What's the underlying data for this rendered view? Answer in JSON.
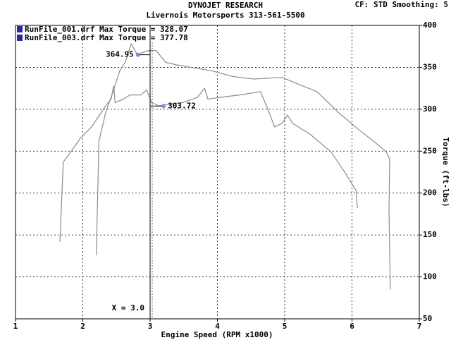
{
  "chart_data": {
    "type": "line",
    "title": "DYNOJET RESEARCH",
    "subtitle": "Livernois Motorsports 313-561-5500",
    "settings_text": "CF: STD  Smoothing: 5",
    "x_label": "Engine Speed (RPM x1000)",
    "y_label": "Torque (ft-lbs)",
    "xlim": [
      1,
      7
    ],
    "xticks": [
      1,
      2,
      3,
      4,
      5,
      6,
      7
    ],
    "ylim": [
      50,
      400
    ],
    "yticks": [
      50,
      100,
      150,
      200,
      250,
      300,
      350,
      400
    ],
    "grid": true,
    "series": [
      {
        "name": "RunFile_001.drf Max Torque = 328.07",
        "color": "#8c8c8c",
        "legend_color": "#2a2a9a",
        "x": [
          1.66,
          1.71,
          1.82,
          1.97,
          2.13,
          2.34,
          2.42,
          2.46,
          2.48,
          2.6,
          2.7,
          2.86,
          2.95,
          3.02,
          3.13,
          3.28,
          3.49,
          3.7,
          3.81,
          3.86,
          4.02,
          4.33,
          4.64,
          4.75,
          4.85,
          4.96,
          5.04,
          5.12,
          5.38,
          5.69,
          5.9,
          6.06,
          6.08
        ],
        "values": [
          142,
          237,
          249,
          266,
          279,
          304,
          312,
          328,
          308,
          312,
          317,
          317,
          323,
          308,
          304,
          306,
          308,
          314,
          325,
          312,
          314,
          317,
          321,
          300,
          279,
          283,
          293,
          283,
          270,
          249,
          224,
          203,
          182
        ]
      },
      {
        "name": "RunFile_003.drf Max Torque = 377.78",
        "color": "#8c8c8c",
        "legend_color": "#2a2a9a",
        "x": [
          2.2,
          2.24,
          2.34,
          2.45,
          2.55,
          2.63,
          2.72,
          2.81,
          2.97,
          3.09,
          3.23,
          3.39,
          3.6,
          3.91,
          4.23,
          4.54,
          4.96,
          5.17,
          5.48,
          5.8,
          6.11,
          6.32,
          6.51,
          6.56,
          6.55,
          6.57
        ],
        "values": [
          126,
          262,
          296,
          321,
          346,
          356,
          378,
          365,
          370,
          370,
          356,
          353,
          350,
          346,
          339,
          336,
          338,
          331,
          321,
          296,
          275,
          262,
          249,
          241,
          178,
          85
        ]
      }
    ],
    "annotations": [
      {
        "x": 2.82,
        "y": 364.95,
        "color": "#8888dd"
      },
      {
        "x": 3.2,
        "y": 303.72,
        "color": "#8888dd"
      }
    ],
    "cursor": {
      "x": 3.0,
      "label": "X = 3.0"
    }
  }
}
